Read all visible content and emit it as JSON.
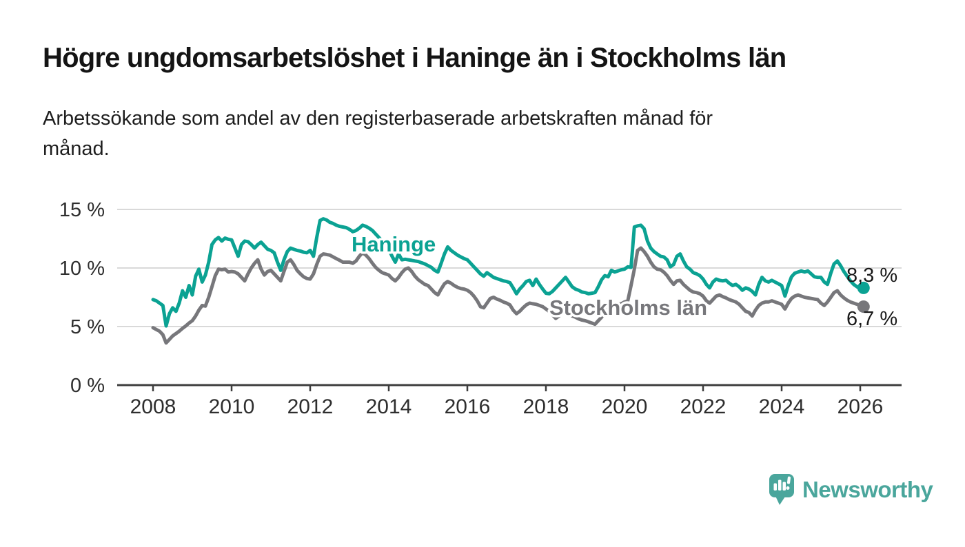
{
  "chart_data": {
    "type": "line",
    "title": "Högre ungdomsarbetslöshet i Haninge än i Stockholms län",
    "subtitle_lines": [
      "Arbetssökande som andel av den registerbaserade arbetskraften månad för",
      "månad."
    ],
    "unit": "%",
    "grid": true,
    "legend_position": "inline-labels",
    "x_axis": {
      "start": "2008-01",
      "end": "2026-02",
      "interval": "month",
      "tick_years": [
        2008,
        2010,
        2012,
        2014,
        2016,
        2018,
        2020,
        2022,
        2024,
        2026
      ]
    },
    "y_axis": {
      "ylim": [
        0,
        15.5
      ],
      "ticks": [
        {
          "value": 0,
          "label": "0 %"
        },
        {
          "value": 5,
          "label": "5 %"
        },
        {
          "value": 10,
          "label": "10 %"
        },
        {
          "value": 15,
          "label": "15 %"
        }
      ]
    },
    "series": [
      {
        "id": "haninge",
        "name": "Haninge",
        "color": "#0ba293",
        "final_value": 8.3,
        "end_label": "8,3 %",
        "values": [
          7.3,
          7.2,
          7.0,
          6.8,
          5.05,
          6.1,
          6.6,
          6.3,
          7.0,
          8.05,
          7.5,
          8.5,
          7.7,
          9.3,
          9.9,
          8.8,
          9.4,
          10.5,
          12.0,
          12.4,
          12.6,
          12.3,
          12.55,
          12.45,
          12.4,
          11.7,
          11.0,
          12.0,
          12.3,
          12.25,
          12.0,
          11.7,
          12.0,
          12.2,
          11.9,
          11.6,
          11.5,
          11.3,
          10.5,
          9.8,
          10.7,
          11.4,
          11.7,
          11.6,
          11.5,
          11.45,
          11.35,
          11.3,
          11.5,
          11.0,
          12.6,
          14.05,
          14.2,
          14.1,
          13.9,
          13.8,
          13.65,
          13.55,
          13.5,
          13.45,
          13.3,
          13.1,
          13.2,
          13.4,
          13.65,
          13.55,
          13.4,
          13.2,
          12.9,
          12.6,
          12.3,
          12.0,
          11.6,
          11.0,
          10.5,
          11.2,
          10.7,
          10.75,
          10.7,
          10.65,
          10.6,
          10.55,
          10.45,
          10.35,
          10.2,
          10.05,
          9.8,
          9.65,
          10.4,
          11.2,
          11.8,
          11.5,
          11.3,
          11.1,
          10.95,
          10.8,
          10.7,
          10.4,
          10.1,
          9.8,
          9.5,
          9.3,
          9.6,
          9.4,
          9.2,
          9.1,
          9.0,
          8.9,
          8.85,
          8.75,
          8.3,
          7.8,
          8.2,
          8.5,
          8.85,
          8.95,
          8.5,
          9.05,
          8.6,
          8.2,
          7.85,
          7.8,
          8.0,
          8.3,
          8.6,
          8.9,
          9.2,
          8.8,
          8.4,
          8.2,
          8.1,
          7.95,
          7.9,
          7.8,
          7.85,
          7.9,
          8.4,
          9.0,
          9.35,
          9.25,
          9.8,
          9.65,
          9.75,
          9.85,
          9.9,
          10.1,
          10.05,
          13.5,
          13.6,
          13.65,
          13.35,
          12.3,
          11.7,
          11.4,
          11.2,
          11.0,
          10.95,
          10.7,
          10.1,
          10.3,
          11.0,
          11.2,
          10.6,
          10.1,
          9.9,
          9.6,
          9.5,
          9.35,
          9.05,
          8.6,
          8.3,
          8.8,
          9.05,
          8.95,
          8.9,
          8.95,
          8.7,
          8.5,
          8.6,
          8.4,
          8.1,
          8.3,
          8.2,
          8.0,
          7.7,
          8.6,
          9.2,
          8.9,
          8.8,
          8.95,
          8.8,
          8.65,
          8.5,
          7.6,
          8.5,
          9.25,
          9.55,
          9.65,
          9.75,
          9.65,
          9.75,
          9.5,
          9.25,
          9.2,
          9.2,
          8.8,
          8.6,
          9.55,
          10.35,
          10.6,
          10.2,
          9.7,
          9.3,
          8.9,
          8.6,
          8.4,
          8.2,
          8.3
        ]
      },
      {
        "id": "stockholm",
        "name": "Stockholms län",
        "color": "#77777b",
        "final_value": 6.7,
        "end_label": "6,7 %",
        "values": [
          4.9,
          4.75,
          4.6,
          4.3,
          3.6,
          3.9,
          4.2,
          4.4,
          4.6,
          4.85,
          5.05,
          5.3,
          5.5,
          5.9,
          6.4,
          6.8,
          6.75,
          7.5,
          8.4,
          9.35,
          9.9,
          9.85,
          9.9,
          9.65,
          9.7,
          9.65,
          9.5,
          9.2,
          8.9,
          9.5,
          10.0,
          10.4,
          10.7,
          9.9,
          9.4,
          9.7,
          9.8,
          9.5,
          9.2,
          8.9,
          9.7,
          10.5,
          10.7,
          10.3,
          9.8,
          9.5,
          9.25,
          9.1,
          9.05,
          9.5,
          10.3,
          11.0,
          11.2,
          11.15,
          11.1,
          10.95,
          10.8,
          10.65,
          10.5,
          10.5,
          10.5,
          10.4,
          10.6,
          11.0,
          11.3,
          11.1,
          10.8,
          10.4,
          10.05,
          9.8,
          9.6,
          9.5,
          9.4,
          9.1,
          8.9,
          9.2,
          9.6,
          9.9,
          10.0,
          9.7,
          9.3,
          9.0,
          8.8,
          8.6,
          8.5,
          8.2,
          7.9,
          7.7,
          8.2,
          8.65,
          8.85,
          8.7,
          8.5,
          8.35,
          8.25,
          8.2,
          8.1,
          7.9,
          7.6,
          7.2,
          6.7,
          6.6,
          7.0,
          7.4,
          7.5,
          7.35,
          7.25,
          7.1,
          7.0,
          6.85,
          6.4,
          6.1,
          6.3,
          6.6,
          6.85,
          7.0,
          6.95,
          6.9,
          6.8,
          6.7,
          6.5,
          6.3,
          6.0,
          5.7,
          5.9,
          6.2,
          6.4,
          6.2,
          5.9,
          5.8,
          5.65,
          5.55,
          5.5,
          5.4,
          5.3,
          5.2,
          5.5,
          5.8,
          6.2,
          6.6,
          7.0,
          6.95,
          6.9,
          6.95,
          7.1,
          7.2,
          8.5,
          9.9,
          11.5,
          11.7,
          11.4,
          11.0,
          10.5,
          10.1,
          9.9,
          9.85,
          9.65,
          9.35,
          8.95,
          8.6,
          8.9,
          8.95,
          8.6,
          8.35,
          8.1,
          7.95,
          7.9,
          7.8,
          7.6,
          7.2,
          7.0,
          7.3,
          7.6,
          7.7,
          7.55,
          7.45,
          7.3,
          7.2,
          7.1,
          6.9,
          6.6,
          6.3,
          6.2,
          5.9,
          6.4,
          6.8,
          7.0,
          7.1,
          7.1,
          7.2,
          7.1,
          7.0,
          6.9,
          6.5,
          7.0,
          7.4,
          7.6,
          7.7,
          7.6,
          7.5,
          7.45,
          7.4,
          7.35,
          7.3,
          7.0,
          6.8,
          7.1,
          7.5,
          7.9,
          8.05,
          7.7,
          7.45,
          7.25,
          7.1,
          7.0,
          6.9,
          6.8,
          6.7
        ]
      }
    ],
    "colors": {
      "accent_teal": "#0ba293",
      "neutral_gray": "#77777b",
      "axis": "#3d3d3d",
      "gridline": "#d9d9d9",
      "logo_teal": "#4aa69c"
    }
  },
  "logo": {
    "text": "Newsworthy"
  }
}
